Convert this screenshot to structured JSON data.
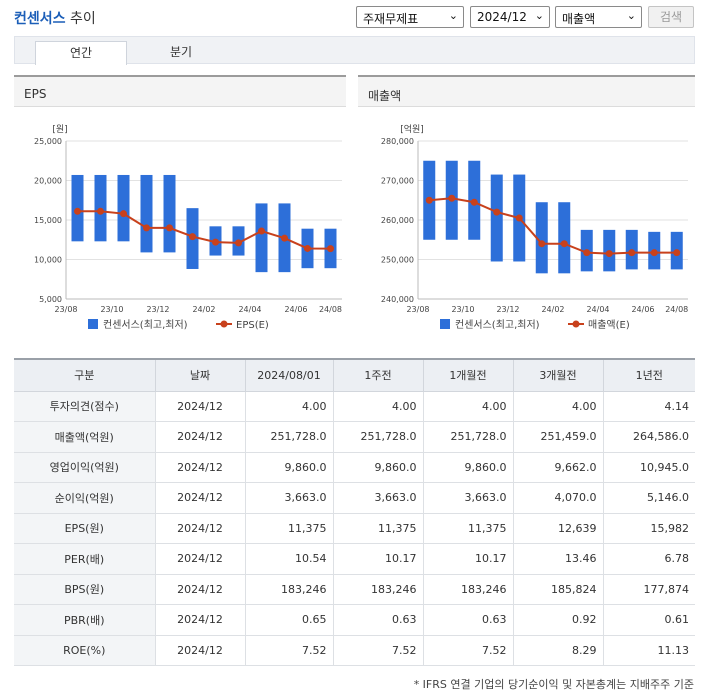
{
  "header": {
    "title": "컨센서스",
    "subtitle": "추이"
  },
  "controls": {
    "type_select": "주재무제표",
    "date_select": "2024/12",
    "item_select": "매출액",
    "search_label": "검색"
  },
  "tabs": [
    {
      "label": "연간",
      "active": true
    },
    {
      "label": "분기",
      "active": false
    }
  ],
  "charts": [
    {
      "panel_title": "EPS",
      "chart_data": {
        "type": "bar-line",
        "unit": "[원]",
        "y_ticks": [
          "25,000",
          "20,000",
          "15,000",
          "10,000",
          "5,000"
        ],
        "ylim": [
          5000,
          25000
        ],
        "x_labels": [
          "23/08",
          "23/10",
          "23/12",
          "24/02",
          "24/04",
          "24/06",
          "24/08"
        ],
        "legend": [
          "컨센서스(최고,최저)",
          "EPS(E)"
        ],
        "colors": {
          "bar": "#2d6fd9",
          "line": "#c8411c"
        },
        "ranges": [
          [
            12300,
            20700
          ],
          [
            12300,
            20700
          ],
          [
            12300,
            20700
          ],
          [
            10900,
            20700
          ],
          [
            10900,
            20700
          ],
          [
            8800,
            16500
          ],
          [
            10500,
            14200
          ],
          [
            10500,
            14200
          ],
          [
            8400,
            17100
          ],
          [
            8400,
            17100
          ],
          [
            8900,
            13900
          ],
          [
            8900,
            13900
          ]
        ],
        "values": [
          16100,
          16100,
          15800,
          14000,
          14000,
          12900,
          12200,
          12100,
          13600,
          12700,
          11400,
          11375
        ]
      }
    },
    {
      "panel_title": "매출액",
      "chart_data": {
        "type": "bar-line",
        "unit": "[억원]",
        "y_ticks": [
          "280,000",
          "270,000",
          "260,000",
          "250,000",
          "240,000"
        ],
        "ylim": [
          240000,
          280000
        ],
        "x_labels": [
          "23/08",
          "23/10",
          "23/12",
          "24/02",
          "24/04",
          "24/06",
          "24/08"
        ],
        "legend": [
          "컨센서스(최고,최저)",
          "매출액(E)"
        ],
        "colors": {
          "bar": "#2d6fd9",
          "line": "#c8411c"
        },
        "ranges": [
          [
            255000,
            275000
          ],
          [
            255000,
            275000
          ],
          [
            255000,
            275000
          ],
          [
            249500,
            271500
          ],
          [
            249500,
            271500
          ],
          [
            246500,
            264500
          ],
          [
            246500,
            264500
          ],
          [
            247000,
            257500
          ],
          [
            247000,
            257500
          ],
          [
            247500,
            257500
          ],
          [
            247500,
            257000
          ],
          [
            247500,
            257000
          ]
        ],
        "values": [
          265000,
          265500,
          264500,
          262000,
          260500,
          254000,
          254000,
          251728,
          251500,
          251728,
          251728,
          251728
        ]
      }
    }
  ],
  "table": {
    "headers": [
      "구분",
      "날짜",
      "2024/08/01",
      "1주전",
      "1개월전",
      "3개월전",
      "1년전"
    ],
    "rows": [
      [
        "투자의견(점수)",
        "2024/12",
        "4.00",
        "4.00",
        "4.00",
        "4.00",
        "4.14"
      ],
      [
        "매출액(억원)",
        "2024/12",
        "251,728.0",
        "251,728.0",
        "251,728.0",
        "251,459.0",
        "264,586.0"
      ],
      [
        "영업이익(억원)",
        "2024/12",
        "9,860.0",
        "9,860.0",
        "9,860.0",
        "9,662.0",
        "10,945.0"
      ],
      [
        "순이익(억원)",
        "2024/12",
        "3,663.0",
        "3,663.0",
        "3,663.0",
        "4,070.0",
        "5,146.0"
      ],
      [
        "EPS(원)",
        "2024/12",
        "11,375",
        "11,375",
        "11,375",
        "12,639",
        "15,982"
      ],
      [
        "PER(배)",
        "2024/12",
        "10.54",
        "10.17",
        "10.17",
        "13.46",
        "6.78"
      ],
      [
        "BPS(원)",
        "2024/12",
        "183,246",
        "183,246",
        "183,246",
        "185,824",
        "177,874"
      ],
      [
        "PBR(배)",
        "2024/12",
        "0.65",
        "0.63",
        "0.63",
        "0.92",
        "0.61"
      ],
      [
        "ROE(%)",
        "2024/12",
        "7.52",
        "7.52",
        "7.52",
        "8.29",
        "11.13"
      ]
    ]
  },
  "footnote": "* IFRS 연결 기업의 당기순이익 및 자본총계는 지배주주 기준"
}
